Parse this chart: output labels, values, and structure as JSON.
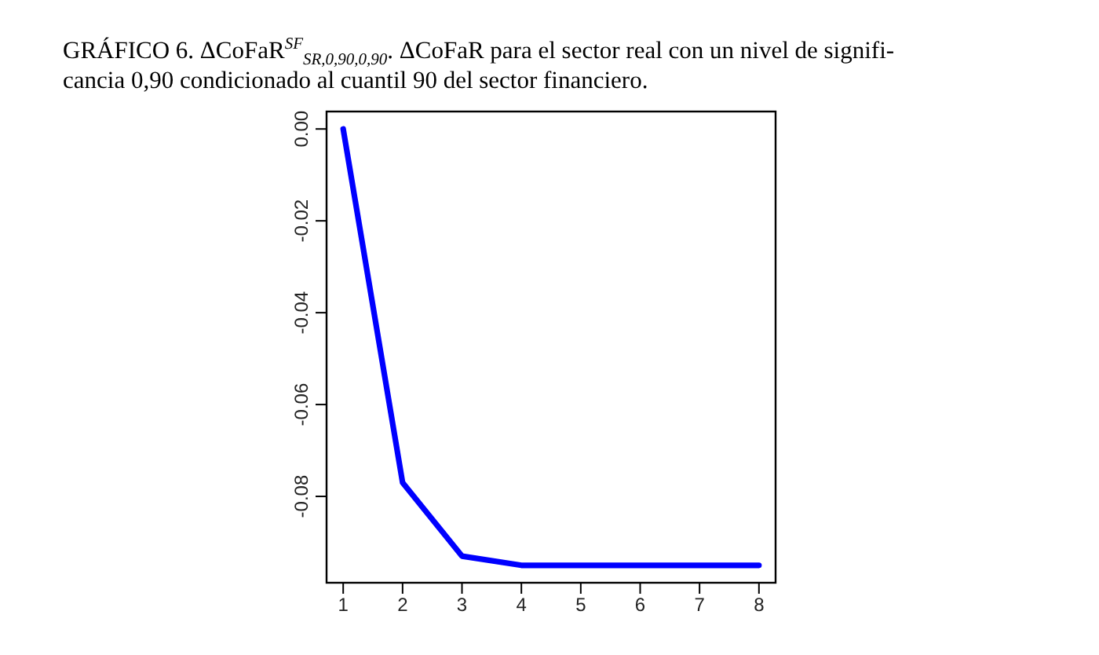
{
  "chart_data": {
    "type": "line",
    "title": "GRÁFICO 6.  ΔCoFaR$^{SF}$$_{SR,0,90,0,90}$. ΔCoFaR para el sector real con un nivel de signifi-\ncancia 0,90 condicionado al cuantil 90 del sector financiero.",
    "x": [
      1,
      2,
      3,
      4,
      5,
      6,
      7,
      8
    ],
    "series": [
      {
        "color": "#0000ff",
        "values": [
          0,
          -0.077,
          -0.093,
          -0.095,
          -0.095,
          -0.095,
          -0.095,
          -0.095
        ]
      }
    ],
    "xlim": [
      0.72,
      8.28
    ],
    "xticks": [
      1,
      2,
      3,
      4,
      5,
      6,
      7,
      8
    ],
    "ylim": [
      -0.0988,
      0.0038
    ],
    "yticks": [
      {
        "value": 0,
        "label": "0.00"
      },
      {
        "value": -0.02,
        "label": "-0.02"
      },
      {
        "value": -0.04,
        "label": "-0.04"
      },
      {
        "value": -0.06,
        "label": "-0.06"
      },
      {
        "value": -0.08,
        "label": "-0.08"
      }
    ]
  }
}
